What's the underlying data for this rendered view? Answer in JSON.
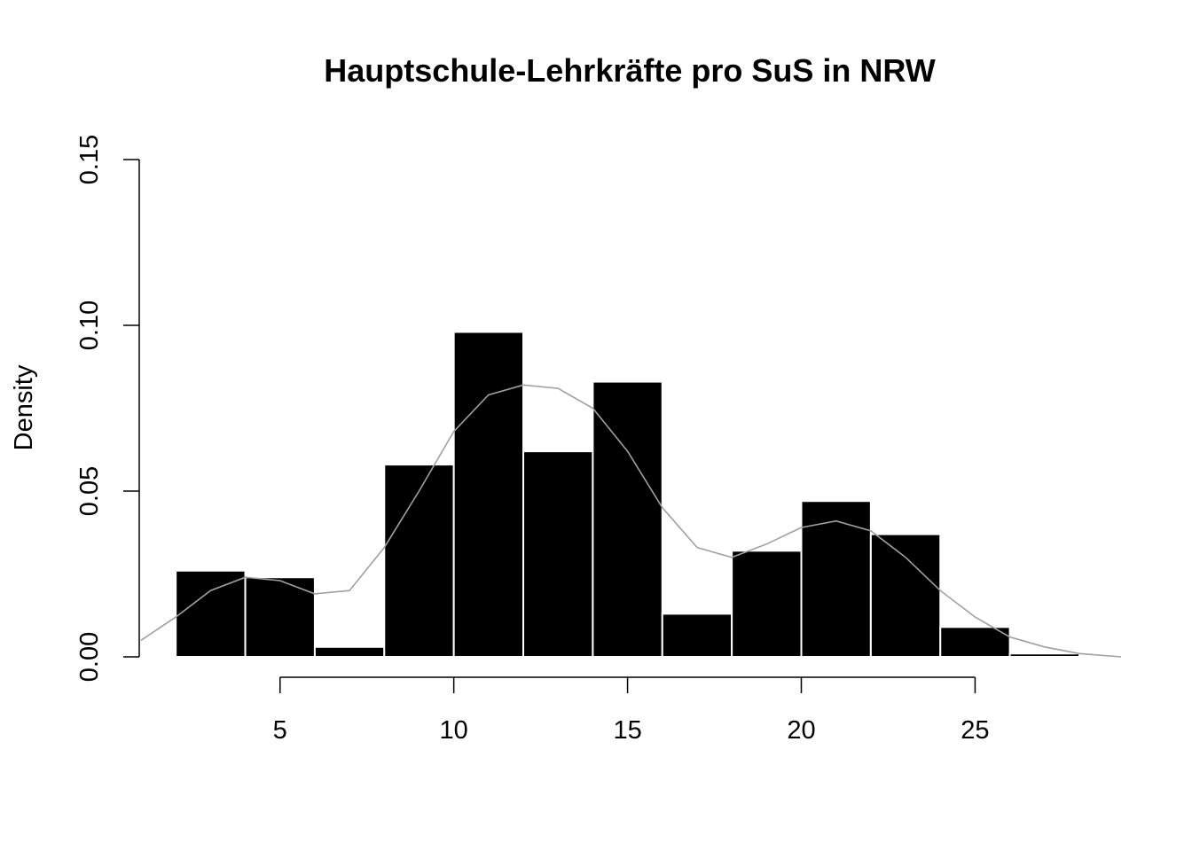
{
  "chart_data": {
    "type": "bar",
    "title": "Hauptschule-Lehrkräfte pro SuS in NRW",
    "xlabel": "",
    "ylabel": "Density",
    "bin_edges": [
      2,
      4,
      6,
      8,
      10,
      12,
      14,
      16,
      18,
      20,
      22,
      24,
      26,
      28
    ],
    "values": [
      0.026,
      0.024,
      0.003,
      0.058,
      0.098,
      0.062,
      0.083,
      0.013,
      0.032,
      0.047,
      0.037,
      0.009,
      0.001
    ],
    "x_ticks": [
      5,
      10,
      15,
      20,
      25
    ],
    "x_tick_labels": [
      "5",
      "10",
      "15",
      "20",
      "25"
    ],
    "y_ticks": [
      0,
      0.05,
      0.1,
      0.15
    ],
    "y_tick_labels": [
      "0.00",
      "0.05",
      "0.10",
      "0.15"
    ],
    "xlim": [
      1,
      29.2
    ],
    "ylim": [
      0,
      0.15
    ],
    "density_curve": {
      "x": [
        1.0,
        2.0,
        3.0,
        4.0,
        5.0,
        6.0,
        7.0,
        8.0,
        9.0,
        10.0,
        11.0,
        12.0,
        13.0,
        14.0,
        15.0,
        16.0,
        17.0,
        18.0,
        19.0,
        20.0,
        21.0,
        22.0,
        23.0,
        24.0,
        25.0,
        26.0,
        27.0,
        28.0,
        29.2
      ],
      "y": [
        0.005,
        0.012,
        0.02,
        0.024,
        0.023,
        0.019,
        0.02,
        0.033,
        0.05,
        0.068,
        0.079,
        0.082,
        0.081,
        0.075,
        0.062,
        0.045,
        0.033,
        0.03,
        0.034,
        0.039,
        0.041,
        0.038,
        0.03,
        0.02,
        0.012,
        0.006,
        0.003,
        0.001,
        0.0
      ],
      "color": "#a0a0a0"
    },
    "bar_color": "#000000",
    "bar_border": "#ffffff",
    "grid": false,
    "legend": "none"
  }
}
